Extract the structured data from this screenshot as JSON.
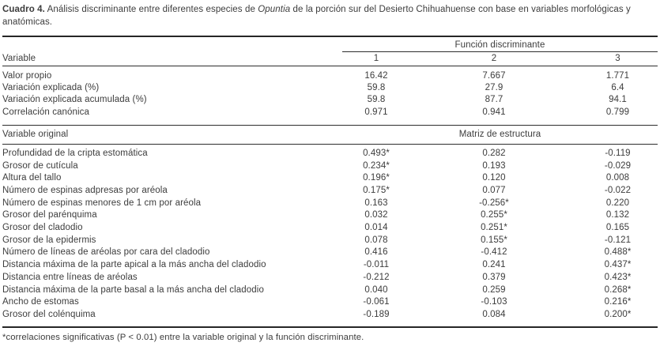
{
  "colors": {
    "background": "#ffffff",
    "text": "#3c3c3c",
    "rules": "#262626"
  },
  "title": {
    "label": "Cuadro 4.",
    "part1": " Análisis discriminante entre diferentes especies de ",
    "italic": "Opuntia",
    "part2": " de la porción sur del Desierto Chihuahuense con base en variables morfológicas y anatómicas."
  },
  "table": {
    "group_header": "Función discriminante",
    "variable_header": "Variable",
    "function_columns": [
      "1",
      "2",
      "3"
    ],
    "summary_rows": [
      {
        "label": "Valor propio",
        "values": [
          "16.42",
          "7.667",
          "1.771"
        ]
      },
      {
        "label": "Variación explicada (%)",
        "values": [
          "59.8",
          "27.9",
          "6.4"
        ]
      },
      {
        "label": "Variación explicada acumulada (%)",
        "values": [
          "59.8",
          "87.7",
          "94.1"
        ]
      },
      {
        "label": "Correlación canónica",
        "values": [
          "0.971",
          "0.941",
          "0.799"
        ]
      }
    ],
    "structure_header": {
      "label": "Variable original",
      "span_label": "Matriz de estructura"
    },
    "structure_rows": [
      {
        "label": "Profundidad de la cripta estomática",
        "values": [
          "0.493*",
          "0.282",
          "-0.119"
        ]
      },
      {
        "label": "Grosor de cutícula",
        "values": [
          "0.234*",
          "0.193",
          "-0.029"
        ]
      },
      {
        "label": "Altura del tallo",
        "values": [
          "0.196*",
          "0.120",
          "0.008"
        ]
      },
      {
        "label": "Número de espinas adpresas por aréola",
        "values": [
          "0.175*",
          "0.077",
          "-0.022"
        ]
      },
      {
        "label": "Número de espinas menores de 1 cm por aréola",
        "values": [
          "0.163",
          "-0.256*",
          "0.220"
        ]
      },
      {
        "label": "Grosor del parénquima",
        "values": [
          "0.032",
          "0.255*",
          "0.132"
        ]
      },
      {
        "label": "Grosor del cladodio",
        "values": [
          "0.014",
          "0.251*",
          "0.165"
        ]
      },
      {
        "label": "Grosor de la epidermis",
        "values": [
          "0.078",
          "0.155*",
          "-0.121"
        ]
      },
      {
        "label": "Número de líneas de aréolas por cara del cladodio",
        "values": [
          "0.416",
          "-0.412",
          "0.488*"
        ]
      },
      {
        "label": "Distancia máxima de la parte apical a la más ancha del cladodio",
        "values": [
          "-0.011",
          "0.241",
          "0.437*"
        ]
      },
      {
        "label": "Distancia entre líneas de aréolas",
        "values": [
          "-0.212",
          "0.379",
          "0.423*"
        ]
      },
      {
        "label": "Distancia máxima de la parte basal a la más ancha del cladodio",
        "values": [
          "0.040",
          "0.259",
          "0.268*"
        ]
      },
      {
        "label": "Ancho de estomas",
        "values": [
          "-0.061",
          "-0.103",
          "0.216*"
        ]
      },
      {
        "label": "Grosor del colénquima",
        "values": [
          "-0.189",
          "0.084",
          "0.200*"
        ]
      }
    ],
    "footnote": "*correlaciones significativas (P < 0.01) entre la variable original y la función discriminante."
  }
}
